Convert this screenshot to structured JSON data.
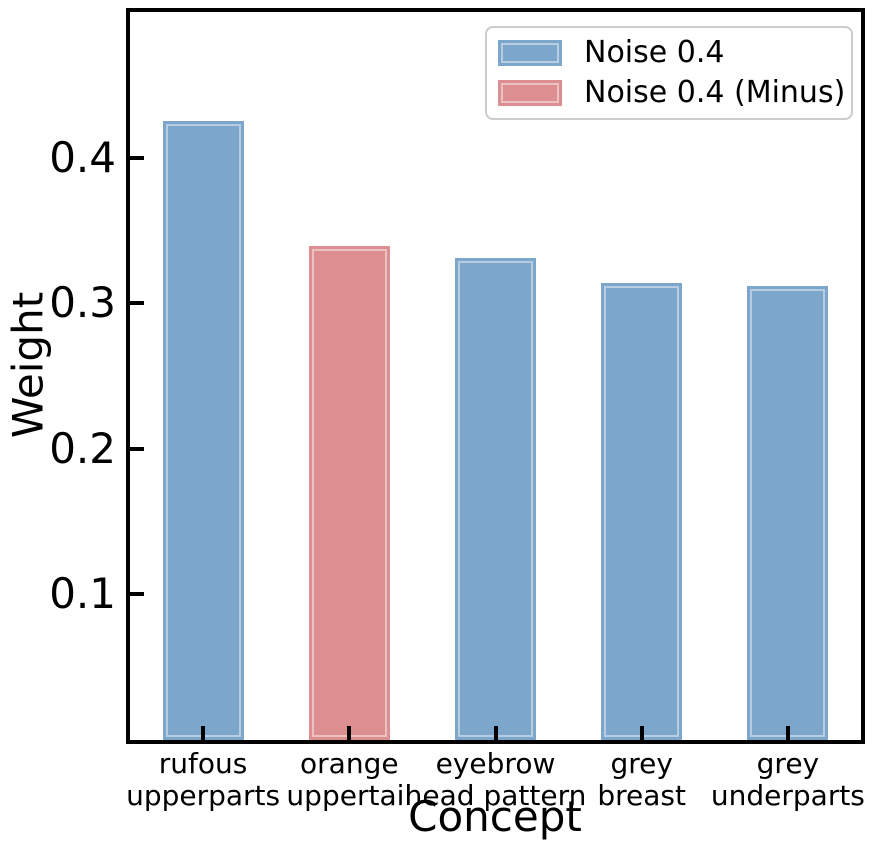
{
  "figure": {
    "background": "#ffffff",
    "text_color": "#000000"
  },
  "chart_data": {
    "type": "bar",
    "title": "",
    "xlabel": "Concept",
    "ylabel": "Weight",
    "ylim": [
      0,
      0.5
    ],
    "yticks": [
      0.1,
      0.2,
      0.3,
      0.4
    ],
    "grid": false,
    "categories": [
      "rufous upperparts",
      "orange uppertail",
      "eyebrow head pattern",
      "grey breast",
      "grey underparts"
    ],
    "bars": [
      {
        "line1": "rufous",
        "line2": "upperparts",
        "value": 0.425,
        "series": "Noise 0.4"
      },
      {
        "line1": "orange",
        "line2": "uppertail",
        "value": 0.339,
        "series": "Noise 0.4 (Minus)"
      },
      {
        "line1": "eyebrow",
        "line2": "head pattern",
        "value": 0.331,
        "series": "Noise 0.4"
      },
      {
        "line1": "grey",
        "line2": "breast",
        "value": 0.314,
        "series": "Noise 0.4"
      },
      {
        "line1": "grey",
        "line2": "underparts",
        "value": 0.312,
        "series": "Noise 0.4"
      }
    ],
    "legend": {
      "position": "upper right",
      "entries": [
        {
          "label": "Noise 0.4",
          "color": "#7CA7CB"
        },
        {
          "label": "Noise 0.4 (Minus)",
          "color": "#DD8E90"
        }
      ]
    }
  }
}
